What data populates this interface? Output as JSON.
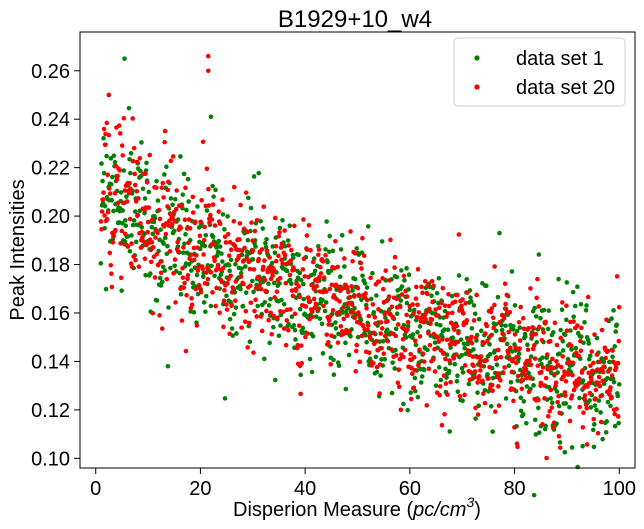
{
  "chart_data": {
    "type": "scatter",
    "title": "B1929+10_w4",
    "xlabel": "Disperion Measure (pc/cm³)",
    "xlabel_prefix": "Disperion Measure (",
    "xlabel_math": "pc/cm",
    "xlabel_sup": "3",
    "xlabel_suffix": ")",
    "ylabel": "Peak Intensities",
    "xlim": [
      -3,
      103
    ],
    "ylim": [
      0.096,
      0.276
    ],
    "xticks": [
      0,
      20,
      40,
      60,
      80,
      100
    ],
    "xtick_labels": [
      "0",
      "20",
      "40",
      "60",
      "80",
      "100"
    ],
    "yticks": [
      0.1,
      0.12,
      0.14,
      0.16,
      0.18,
      0.2,
      0.22,
      0.24,
      0.26
    ],
    "ytick_labels": [
      "0.10",
      "0.12",
      "0.14",
      "0.16",
      "0.18",
      "0.20",
      "0.22",
      "0.24",
      "0.26"
    ],
    "grid": false,
    "legend_position": "top-right",
    "trend": {
      "description": "noisy decreasing trend",
      "x": [
        1,
        5,
        10,
        20,
        30,
        40,
        50,
        60,
        70,
        80,
        90,
        100
      ],
      "y_mean": [
        0.21,
        0.207,
        0.196,
        0.186,
        0.177,
        0.168,
        0.16,
        0.153,
        0.148,
        0.143,
        0.136,
        0.132
      ]
    },
    "series": [
      {
        "name": "data set 1",
        "color": "#008000",
        "n_points": 1000,
        "outliers": [
          [
            5.5,
            0.265
          ],
          [
            22,
            0.241
          ],
          [
            93,
            0.105
          ]
        ]
      },
      {
        "name": "data set 20",
        "color": "#ff0000",
        "n_points": 1000,
        "outliers": [
          [
            21.5,
            0.266
          ],
          [
            21.5,
            0.26
          ],
          [
            2.5,
            0.25
          ]
        ]
      }
    ]
  }
}
